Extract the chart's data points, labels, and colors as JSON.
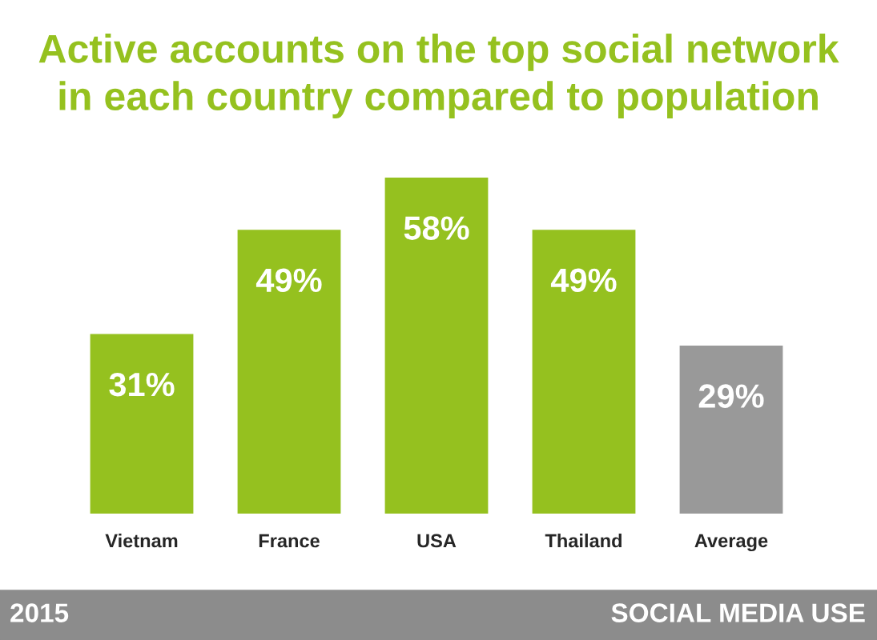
{
  "chart_data": {
    "type": "bar",
    "title": "Active accounts on the top social network\nin each country compared to population",
    "categories": [
      "Vietnam",
      "France",
      "USA",
      "Thailand",
      "Average"
    ],
    "values": [
      31,
      49,
      58,
      49,
      29
    ],
    "value_labels": [
      "31%",
      "49%",
      "58%",
      "49%",
      "29%"
    ],
    "colors": [
      "#95c11f",
      "#95c11f",
      "#95c11f",
      "#95c11f",
      "#999999"
    ],
    "tick_labels": "x",
    "annotations": [
      "2015",
      "SOCIAL MEDIA USE"
    ]
  }
}
